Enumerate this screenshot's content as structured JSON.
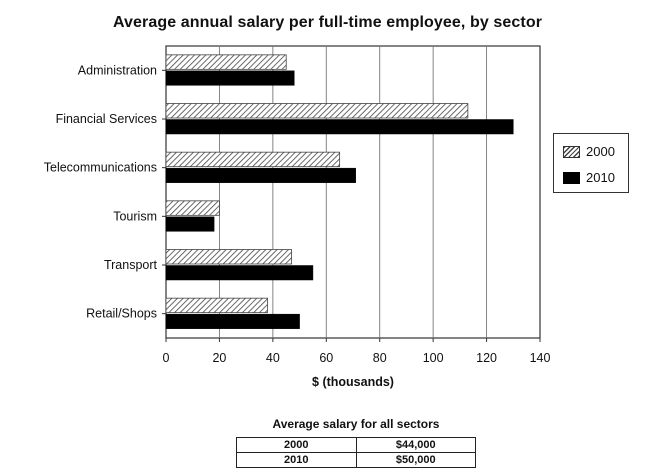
{
  "chart_data": {
    "type": "bar",
    "orientation": "horizontal",
    "title": "Average annual salary per full-time employee, by sector",
    "xlabel": "$ (thousands)",
    "ylabel": "",
    "xlim": [
      0,
      140
    ],
    "xticks": [
      0,
      20,
      40,
      60,
      80,
      100,
      120,
      140
    ],
    "grid": true,
    "legend_position": "right",
    "categories": [
      "Administration",
      "Financial Services",
      "Telecommunications",
      "Tourism",
      "Transport",
      "Retail/Shops"
    ],
    "series": [
      {
        "name": "2000",
        "pattern": "hatched",
        "values": [
          45,
          113,
          65,
          20,
          47,
          38
        ]
      },
      {
        "name": "2010",
        "pattern": "solid",
        "color": "#000000",
        "values": [
          48,
          130,
          71,
          18,
          55,
          50
        ]
      }
    ]
  },
  "summary_table": {
    "title": "Average salary for all sectors",
    "rows": [
      {
        "year": "2000",
        "salary": "$44,000"
      },
      {
        "year": "2010",
        "salary": "$50,000"
      }
    ]
  }
}
